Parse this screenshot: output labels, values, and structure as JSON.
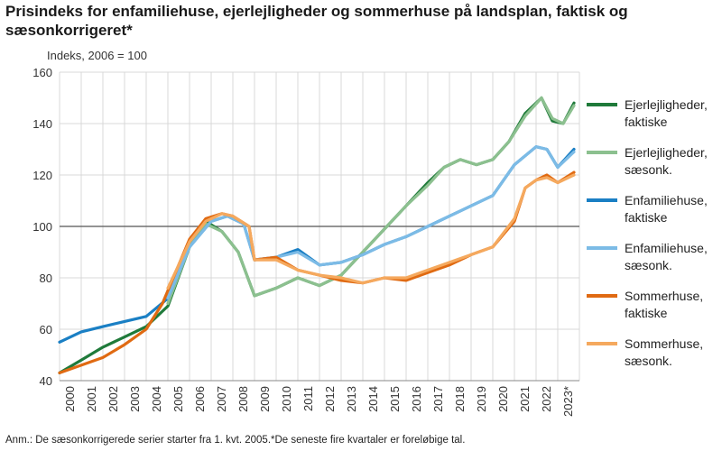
{
  "title": "Prisindeks for enfamiliehuse, ejerlejligheder og sommerhuse på landsplan, faktisk og sæsonkorrigeret*",
  "note": "Anm.: De sæsonkorrigerede serier starter fra 1. kvt. 2005.*De seneste fire kvartaler er foreløbige tal.",
  "chart_data": {
    "type": "line",
    "ylabel": "Indeks, 2006 = 100",
    "ylim": [
      40,
      160
    ],
    "xlim": [
      2000,
      2024
    ],
    "yticks": [
      40,
      60,
      80,
      100,
      120,
      140,
      160
    ],
    "xtick_labels": [
      "2000",
      "2001",
      "2002",
      "2003",
      "2004",
      "2005",
      "2006",
      "2007",
      "2008",
      "2009",
      "2010",
      "2011",
      "2012",
      "2013",
      "2014",
      "2015",
      "2016",
      "2017",
      "2018",
      "2019",
      "2020",
      "2021",
      "2022",
      "2023*"
    ],
    "reference_line": 100,
    "series": [
      {
        "name_lines": [
          "Ejerlejligheder,",
          "faktiske"
        ],
        "color": "#1f7a3a",
        "x": [
          2000,
          2001,
          2002,
          2003,
          2004,
          2005,
          2006,
          2006.75,
          2007.5,
          2008.25,
          2009,
          2010,
          2011,
          2012,
          2013,
          2014,
          2015,
          2016,
          2017,
          2017.75,
          2018.5,
          2019.25,
          2020,
          2020.75,
          2021.5,
          2022.25,
          2022.75,
          2023.25,
          2023.75
        ],
        "y": [
          43,
          48,
          53,
          57,
          61,
          69,
          92,
          102,
          98,
          90,
          73,
          76,
          80,
          77,
          81,
          90,
          99,
          108,
          117,
          123,
          126,
          124,
          126,
          133,
          144,
          150,
          141,
          140,
          148
        ]
      },
      {
        "name_lines": [
          "Ejerlejligheder,",
          "sæsonk."
        ],
        "color": "#8cc08f",
        "x": [
          2005,
          2006,
          2006.75,
          2007.5,
          2008.25,
          2009,
          2010,
          2011,
          2012,
          2013,
          2014,
          2015,
          2016,
          2017,
          2017.75,
          2018.5,
          2019.25,
          2020,
          2020.75,
          2021.5,
          2022.25,
          2022.75,
          2023.25,
          2023.75
        ],
        "y": [
          70,
          92,
          101,
          98,
          90,
          73,
          76,
          80,
          77,
          81,
          90,
          99,
          108,
          116,
          123,
          126,
          124,
          126,
          133,
          143,
          150,
          142,
          140,
          147
        ]
      },
      {
        "name_lines": [
          "Enfamiliehuse,",
          "faktiske"
        ],
        "color": "#1a7fc4",
        "x": [
          2000,
          2001,
          2002,
          2003,
          2004,
          2005,
          2006,
          2007,
          2007.75,
          2008.5,
          2009,
          2010,
          2011,
          2012,
          2013,
          2014,
          2015,
          2016,
          2017,
          2018,
          2019,
          2020,
          2021,
          2022,
          2022.5,
          2023,
          2023.75
        ],
        "y": [
          55,
          59,
          61,
          63,
          65,
          72,
          92,
          102,
          104,
          101,
          87,
          88,
          91,
          85,
          86,
          89,
          93,
          96,
          100,
          104,
          108,
          112,
          124,
          131,
          130,
          123,
          130
        ]
      },
      {
        "name_lines": [
          "Enfamiliehuse,",
          "sæsonk."
        ],
        "color": "#7cbbe6",
        "x": [
          2005,
          2006,
          2007,
          2007.75,
          2008.5,
          2009,
          2010,
          2011,
          2012,
          2013,
          2014,
          2015,
          2016,
          2017,
          2018,
          2019,
          2020,
          2021,
          2022,
          2022.5,
          2023,
          2023.75
        ],
        "y": [
          72,
          92,
          102,
          104,
          101,
          87,
          88,
          90,
          85,
          86,
          89,
          93,
          96,
          100,
          104,
          108,
          112,
          124,
          131,
          130,
          123,
          129
        ]
      },
      {
        "name_lines": [
          "Sommerhuse,",
          "faktiske"
        ],
        "color": "#e06a12",
        "x": [
          2000,
          2001,
          2002,
          2003,
          2004,
          2004.75,
          2005.5,
          2006,
          2006.75,
          2007.5,
          2008,
          2008.75,
          2009,
          2010,
          2011,
          2012,
          2013,
          2014,
          2015,
          2016,
          2017,
          2018,
          2019,
          2020,
          2021,
          2021.5,
          2022,
          2022.5,
          2023,
          2023.75
        ],
        "y": [
          43,
          46,
          49,
          54,
          60,
          70,
          85,
          95,
          103,
          105,
          104,
          100,
          87,
          88,
          83,
          81,
          79,
          78,
          80,
          79,
          82,
          85,
          89,
          92,
          102,
          115,
          118,
          120,
          117,
          121
        ]
      },
      {
        "name_lines": [
          "Sommerhuse,",
          "sæsonk."
        ],
        "color": "#f5a95e",
        "x": [
          2005,
          2005.5,
          2006,
          2006.75,
          2007.5,
          2008,
          2008.75,
          2009,
          2010,
          2011,
          2012,
          2013,
          2014,
          2015,
          2016,
          2017,
          2018,
          2019,
          2020,
          2021,
          2021.5,
          2022,
          2022.5,
          2023,
          2023.75
        ],
        "y": [
          76,
          85,
          94,
          102,
          105,
          104,
          100,
          87,
          87,
          83,
          81,
          80,
          78,
          80,
          80,
          83,
          86,
          89,
          92,
          103,
          115,
          118,
          119,
          117,
          120
        ]
      }
    ]
  }
}
